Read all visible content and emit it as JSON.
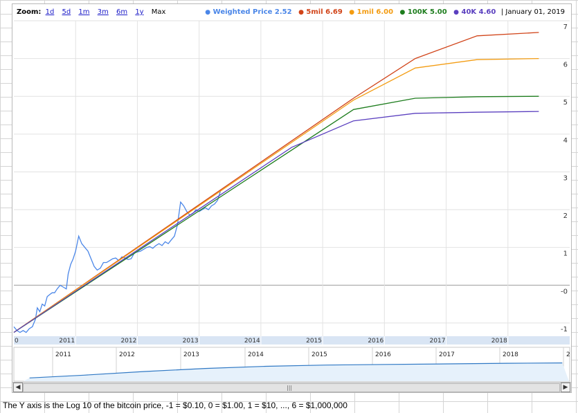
{
  "zoom": {
    "label": "Zoom:",
    "options": [
      "1d",
      "5d",
      "1m",
      "3m",
      "6m",
      "1y"
    ],
    "current": "Max"
  },
  "legend": {
    "items": [
      {
        "label": "Weighted Price",
        "value": "2.52",
        "color": "#4a86e8"
      },
      {
        "label": "5mil",
        "value": "6.69",
        "color": "#d14419"
      },
      {
        "label": "1mil",
        "value": "6.00",
        "color": "#f39c12"
      },
      {
        "label": "100K",
        "value": "5.00",
        "color": "#1e7d1e"
      },
      {
        "label": "40K",
        "value": "4.60",
        "color": "#5a3fbf"
      }
    ],
    "date": "| January 01, 2019"
  },
  "footer_note": "The Y axis is the Log 10 of the bitcoin price, -1 = $0.10, 0 = $1.00, 1 = $10, ..., 6 = $1,000,000",
  "chart_data": {
    "type": "line",
    "x_axis": {
      "start_label": "0",
      "tick_labels": [
        "2011",
        "2012",
        "2013",
        "2014",
        "2015",
        "2016",
        "2017",
        "2018"
      ],
      "range": [
        2010.0,
        2019.0
      ]
    },
    "y_axis": {
      "tick_labels": [
        "7",
        "6",
        "5",
        "4",
        "3",
        "2",
        "1",
        "-0",
        "-1"
      ],
      "tick_values": [
        7,
        6,
        5,
        4,
        3,
        2,
        1,
        0,
        -1
      ],
      "range": [
        -1.35,
        7.0
      ]
    },
    "navigator": {
      "tick_labels": [
        "2011",
        "2012",
        "2013",
        "2014",
        "2015",
        "2016",
        "2017",
        "2018",
        "2"
      ]
    },
    "series": [
      {
        "name": "Weighted Price",
        "color": "#4a86e8",
        "x": [
          2010.0,
          2010.05,
          2010.1,
          2010.15,
          2010.2,
          2010.25,
          2010.3,
          2010.35,
          2010.38,
          2010.42,
          2010.46,
          2010.5,
          2010.54,
          2010.58,
          2010.62,
          2010.66,
          2010.7,
          2010.75,
          2010.8,
          2010.85,
          2010.88,
          2010.92,
          2010.96,
          2011.0,
          2011.05,
          2011.1,
          2011.15,
          2011.2,
          2011.25,
          2011.3,
          2011.35,
          2011.4,
          2011.45,
          2011.5,
          2011.55,
          2011.6,
          2011.65,
          2011.7,
          2011.75,
          2011.8,
          2011.85,
          2011.9,
          2011.95,
          2012.0,
          2012.05,
          2012.1,
          2012.15,
          2012.2,
          2012.25,
          2012.3,
          2012.35,
          2012.4,
          2012.45,
          2012.5,
          2012.55,
          2012.6,
          2012.65,
          2012.7,
          2012.75,
          2012.8,
          2012.85,
          2012.9,
          2012.95,
          2013.0,
          2013.05,
          2013.1,
          2013.15,
          2013.2,
          2013.25,
          2013.3,
          2013.35
        ],
        "values": [
          -1.1,
          -1.2,
          -1.25,
          -1.2,
          -1.25,
          -1.15,
          -1.1,
          -0.9,
          -0.6,
          -0.7,
          -0.5,
          -0.55,
          -0.3,
          -0.25,
          -0.2,
          -0.2,
          -0.1,
          0.0,
          -0.05,
          -0.1,
          0.3,
          0.55,
          0.7,
          0.9,
          1.3,
          1.1,
          1.0,
          0.9,
          0.7,
          0.5,
          0.4,
          0.45,
          0.6,
          0.6,
          0.65,
          0.7,
          0.72,
          0.65,
          0.75,
          0.72,
          0.68,
          0.7,
          0.85,
          0.88,
          0.9,
          0.95,
          1.0,
          1.02,
          0.98,
          1.05,
          1.1,
          1.05,
          1.15,
          1.1,
          1.2,
          1.3,
          1.6,
          2.2,
          2.1,
          1.95,
          1.85,
          1.9,
          2.0,
          1.95,
          2.0,
          2.05,
          2.0,
          2.1,
          2.15,
          2.25,
          2.52
        ]
      },
      {
        "name": "5mil",
        "color": "#d14419",
        "x": [
          2010.0,
          2015.5,
          2016.5,
          2017.5,
          2018.5
        ],
        "values": [
          -1.25,
          4.95,
          6.0,
          6.6,
          6.69
        ]
      },
      {
        "name": "1mil",
        "color": "#f39c12",
        "x": [
          2010.0,
          2015.5,
          2016.5,
          2017.5,
          2018.5
        ],
        "values": [
          -1.25,
          4.9,
          5.75,
          5.97,
          6.0
        ]
      },
      {
        "name": "100K",
        "color": "#1e7d1e",
        "x": [
          2010.0,
          2015.5,
          2016.5,
          2017.5,
          2018.5
        ],
        "values": [
          -1.25,
          4.65,
          4.95,
          4.99,
          5.0
        ]
      },
      {
        "name": "40K",
        "color": "#5a3fbf",
        "x": [
          2010.0,
          2014.5,
          2015.5,
          2016.5,
          2017.5,
          2018.5
        ],
        "values": [
          -1.25,
          3.65,
          4.35,
          4.55,
          4.58,
          4.6
        ]
      }
    ]
  }
}
